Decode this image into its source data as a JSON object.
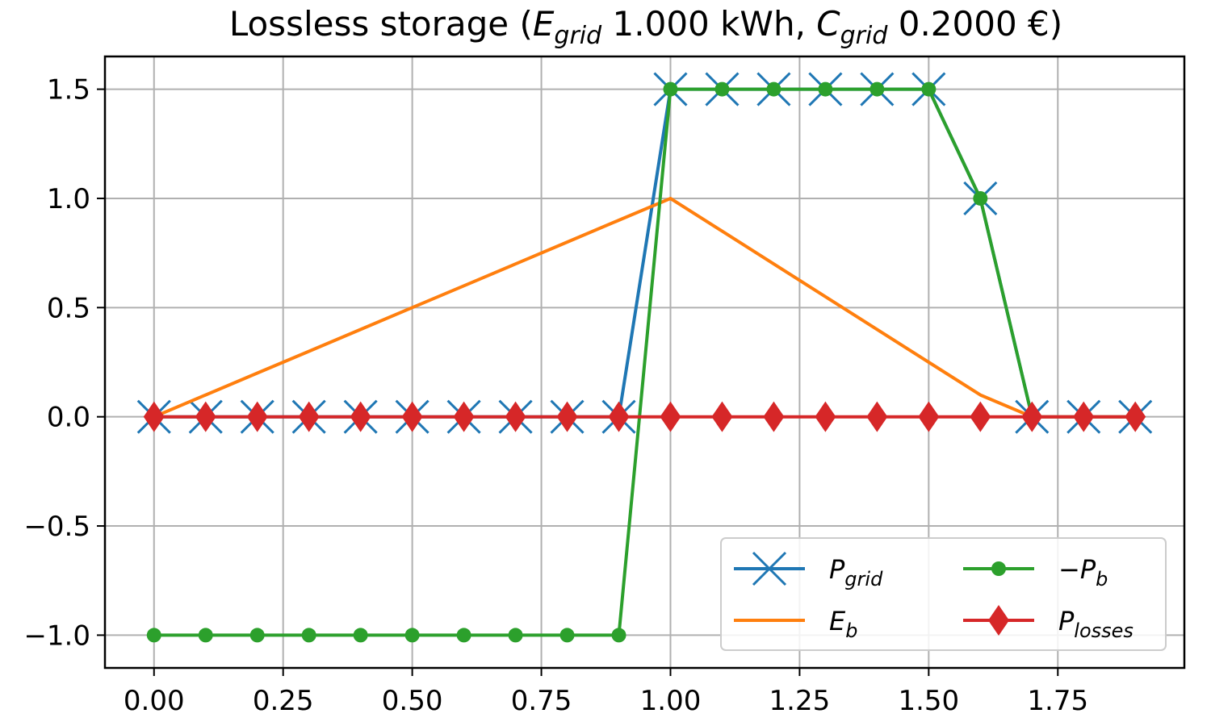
{
  "chart_data": {
    "type": "line",
    "title": {
      "prefix": "Lossless storage (",
      "e_sym": "E",
      "e_sub": "grid",
      "e_val": " 1.000 kWh, ",
      "c_sym": "C",
      "c_sub": "grid",
      "c_val": " 0.2000 €)"
    },
    "xlim": [
      -0.095,
      1.995
    ],
    "ylim": [
      -1.15,
      1.65
    ],
    "x_ticks": [
      0.0,
      0.25,
      0.5,
      0.75,
      1.0,
      1.25,
      1.5,
      1.75
    ],
    "x_tick_labels": [
      "0.00",
      "0.25",
      "0.50",
      "0.75",
      "1.00",
      "1.25",
      "1.50",
      "1.75"
    ],
    "y_ticks": [
      -1.0,
      -0.5,
      0.0,
      0.5,
      1.0,
      1.5
    ],
    "y_tick_labels": [
      "−1.0",
      "−0.5",
      "0.0",
      "0.5",
      "1.0",
      "1.5"
    ],
    "grid": true,
    "legend_position": "lower-right",
    "x": [
      0.0,
      0.1,
      0.2,
      0.3,
      0.4,
      0.5,
      0.6,
      0.7,
      0.8,
      0.9,
      1.0,
      1.1,
      1.2,
      1.3,
      1.4,
      1.5,
      1.6,
      1.7,
      1.8,
      1.9
    ],
    "series": [
      {
        "key": "p_grid",
        "legend_sym": "P",
        "legend_sub": "grid",
        "color": "#1f77b4",
        "marker": "x",
        "values": [
          0,
          0,
          0,
          0,
          0,
          0,
          0,
          0,
          0,
          0,
          1.5,
          1.5,
          1.5,
          1.5,
          1.5,
          1.5,
          1.0,
          0,
          0,
          0
        ]
      },
      {
        "key": "e_b",
        "legend_sym": "E",
        "legend_sub": "b",
        "color": "#ff7f0e",
        "marker": "none",
        "values": [
          0,
          0.1,
          0.2,
          0.3,
          0.4,
          0.5,
          0.6,
          0.7,
          0.8,
          0.9,
          1.0,
          0.85,
          0.7,
          0.55,
          0.4,
          0.25,
          0.1,
          0,
          0,
          0
        ]
      },
      {
        "key": "neg_p_b",
        "legend_sym": "−P",
        "legend_sub": "b",
        "color": "#2ca02c",
        "marker": "o",
        "values": [
          -1,
          -1,
          -1,
          -1,
          -1,
          -1,
          -1,
          -1,
          -1,
          -1,
          1.5,
          1.5,
          1.5,
          1.5,
          1.5,
          1.5,
          1.0,
          0,
          null,
          null
        ]
      },
      {
        "key": "p_losses",
        "legend_sym": "P",
        "legend_sub": "losses",
        "color": "#d62728",
        "marker": "d",
        "values": [
          0,
          0,
          0,
          0,
          0,
          0,
          0,
          0,
          0,
          0,
          0,
          0,
          0,
          0,
          0,
          0,
          0,
          0,
          0,
          0
        ]
      }
    ]
  }
}
